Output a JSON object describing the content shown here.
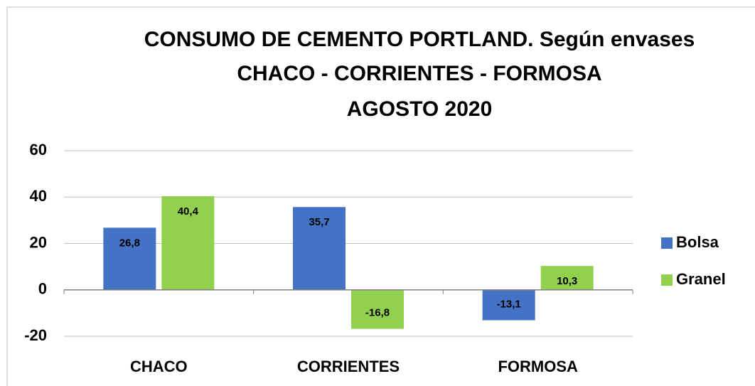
{
  "chart_data": {
    "type": "bar",
    "title": [
      "CONSUMO DE CEMENTO PORTLAND. Según envases",
      "CHACO - CORRIENTES - FORMOSA",
      "AGOSTO 2020"
    ],
    "categories": [
      "CHACO",
      "CORRIENTES",
      "FORMOSA"
    ],
    "series": [
      {
        "name": "Bolsa",
        "color": "#4472c4",
        "values": [
          26.8,
          35.7,
          -13.1
        ],
        "value_labels": [
          "26,8",
          "35,7",
          "-13,1"
        ]
      },
      {
        "name": "Granel",
        "color": "#92d050",
        "values": [
          40.4,
          -16.8,
          10.3
        ],
        "value_labels": [
          "40,4",
          "-16,8",
          "10,3"
        ]
      }
    ],
    "ylim": [
      -20,
      60
    ],
    "yticks": [
      -20,
      0,
      20,
      40,
      60
    ],
    "grid": true,
    "legend": "right"
  }
}
